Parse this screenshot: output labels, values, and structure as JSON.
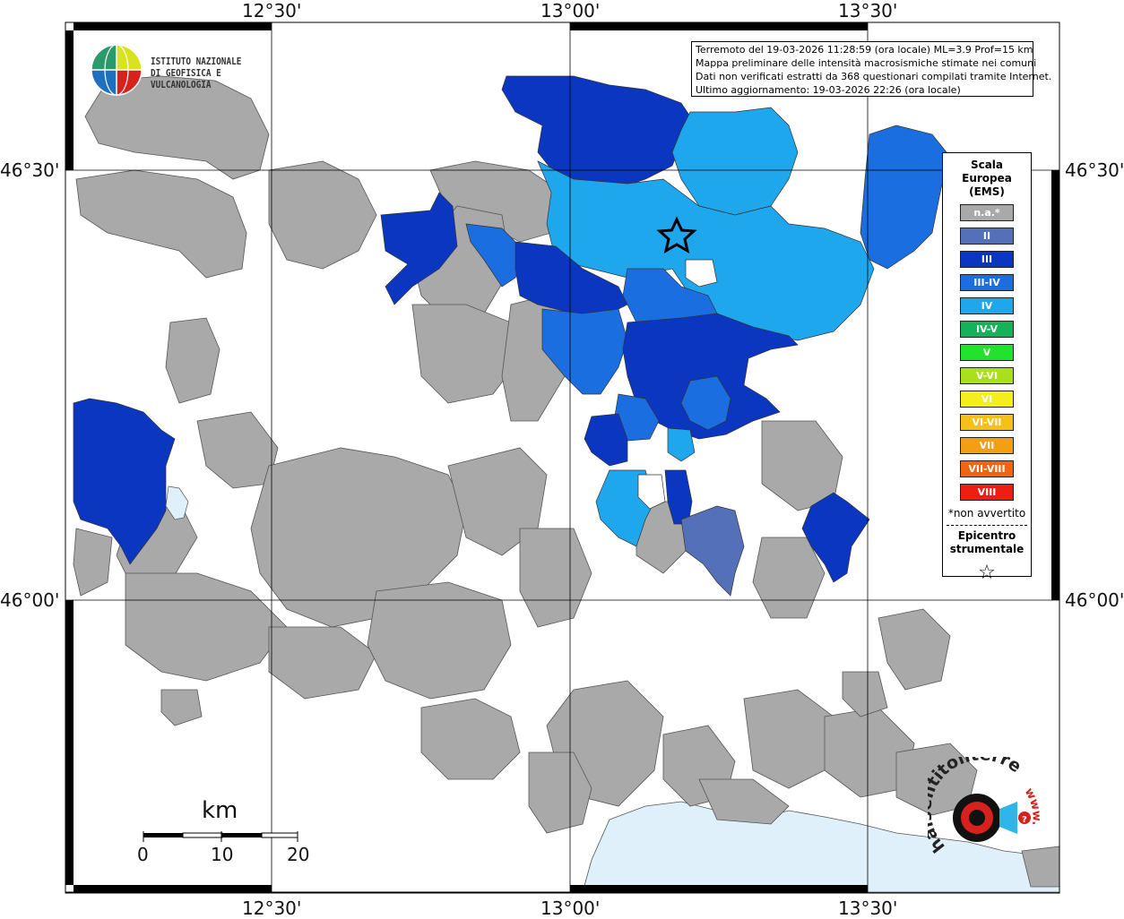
{
  "header": {
    "info_lines": [
      "Terremoto del 19-03-2026 11:28:59 (ora locale) ML=3.9 Prof=15 km",
      "Mappa preliminare delle intensità macrosismiche stimate nei comuni",
      "Dati non verificati estratti da 368 questionari compilati tramite Internet.",
      "Ultimo aggiornamento: 19-03-2026 22:26 (ora locale)"
    ]
  },
  "logo": {
    "line1": "ISTITUTO NAZIONALE",
    "line2": "DI GEOFISICA E VULCANOLOGIA"
  },
  "coords": {
    "lon_top": [
      "12°30'",
      "13°00'",
      "13°30'"
    ],
    "lon_bottom": [
      "12°30'",
      "13°00'",
      "13°30'"
    ],
    "lat_left": [
      "46°30'",
      "46°00'"
    ],
    "lat_right": [
      "46°30'",
      "46°00'"
    ]
  },
  "legend": {
    "title_lines": [
      "Scala",
      "Europea",
      "(EMS)"
    ],
    "items": [
      {
        "label": "n.a.*",
        "color": "#a9a9a9"
      },
      {
        "label": "II",
        "color": "#5470b8"
      },
      {
        "label": "III",
        "color": "#0a36c0"
      },
      {
        "label": "III-IV",
        "color": "#1b6ee0"
      },
      {
        "label": "IV",
        "color": "#1fa7ee"
      },
      {
        "label": "IV-V",
        "color": "#15b25a"
      },
      {
        "label": "V",
        "color": "#22e22e"
      },
      {
        "label": "V-VI",
        "color": "#a9e01c"
      },
      {
        "label": "VI",
        "color": "#f4ee1c"
      },
      {
        "label": "VI-VII",
        "color": "#f6c016"
      },
      {
        "label": "VII",
        "color": "#f49e14"
      },
      {
        "label": "VII-VIII",
        "color": "#f26410"
      },
      {
        "label": "VIII",
        "color": "#ee1e12"
      }
    ],
    "note": "*non avvertito",
    "epicenter_lines": [
      "Epicentro",
      "strumentale"
    ],
    "star_icon": "star-outline-icon"
  },
  "scale_bar": {
    "unit": "km",
    "labels": [
      "0",
      "10",
      "20"
    ]
  },
  "watermark": {
    "text": "haisentitoilterremoto.it",
    "prefix": "www."
  },
  "colors": {
    "gray": "#a9a9a9",
    "ii": "#5470b8",
    "iii": "#0a36c0",
    "iii_iv": "#1b6ee0",
    "iv": "#1fa7ee",
    "sea": "#dff0fb"
  }
}
